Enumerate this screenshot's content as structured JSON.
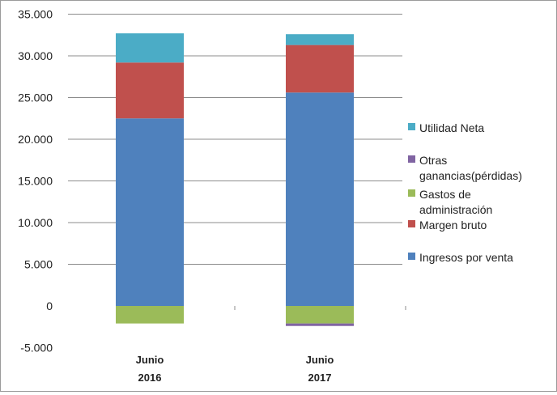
{
  "chart_data": {
    "type": "bar",
    "stacked": true,
    "categories": [
      "Junio\n2016",
      "Junio\n2017"
    ],
    "category_lines": [
      [
        "Junio",
        "2016"
      ],
      [
        "Junio",
        "2017"
      ]
    ],
    "ylim": [
      -5000,
      35000
    ],
    "yticks": [
      35000,
      30000,
      25000,
      20000,
      15000,
      10000,
      5000,
      0,
      -5000
    ],
    "ytick_labels": [
      "35.000",
      "30.000",
      "25.000",
      "20.000",
      "15.000",
      "10.000",
      "5.000",
      "0",
      "-5.000"
    ],
    "grid": true,
    "legend_position": "right",
    "series": [
      {
        "name": "Ingresos por venta",
        "color": "#4f81bd",
        "values": [
          22500,
          25600
        ]
      },
      {
        "name": "Margen bruto",
        "color": "#c0504d",
        "values": [
          6700,
          5700
        ]
      },
      {
        "name": "Gastos de administración",
        "color": "#9bbb59",
        "values": [
          -2100,
          -2100
        ]
      },
      {
        "name": "Otras ganancias(pérdidas)",
        "color": "#8064a2",
        "values": [
          0,
          -300
        ]
      },
      {
        "name": "Utilidad Neta",
        "color": "#4bacc6",
        "values": [
          3500,
          1300
        ]
      }
    ],
    "legend": [
      {
        "lines": [
          "Utilidad Neta"
        ],
        "color": "#4bacc6"
      },
      {
        "lines": [
          "Otras",
          "ganancias(pérdidas)"
        ],
        "color": "#8064a2"
      },
      {
        "lines": [
          "Gastos de",
          "administración"
        ],
        "color": "#9bbb59"
      },
      {
        "lines": [
          "Margen bruto"
        ],
        "color": "#c0504d"
      },
      {
        "lines": [
          "Ingresos por venta"
        ],
        "color": "#4f81bd"
      }
    ]
  }
}
